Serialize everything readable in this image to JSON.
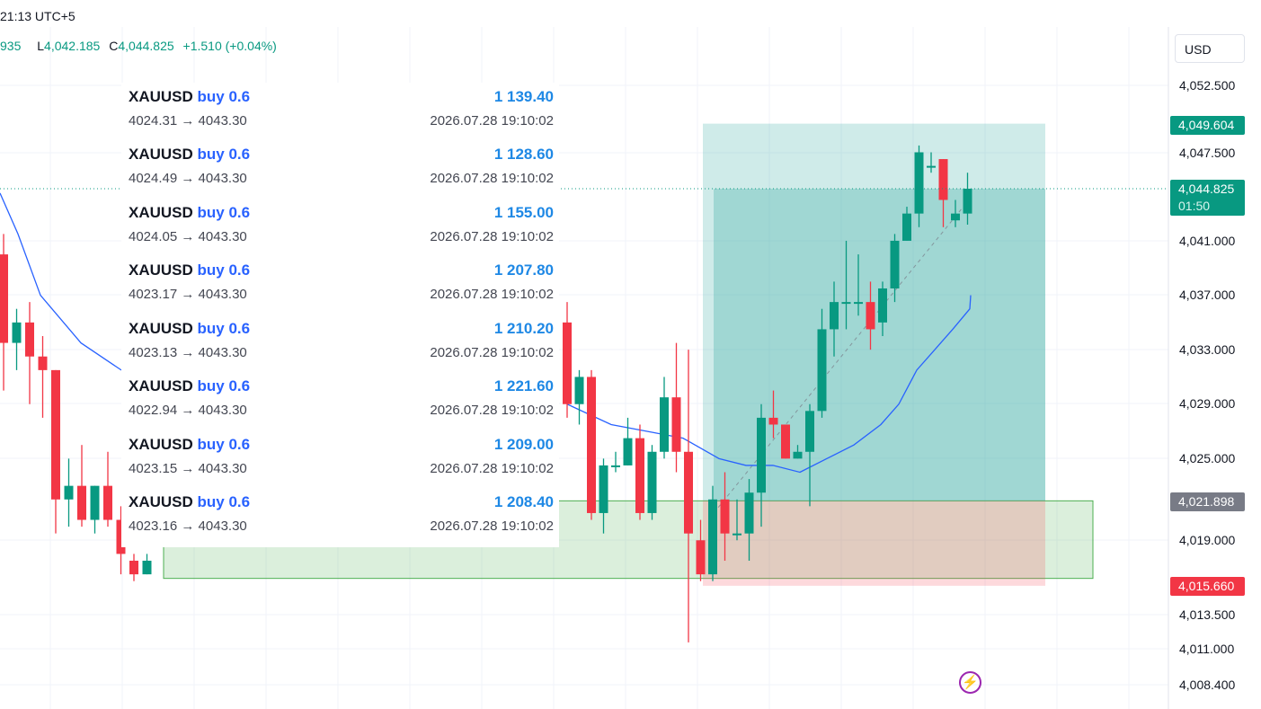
{
  "header": {
    "time": "21:13 UTC+5",
    "ohlc_tail": "935",
    "low_key": "L",
    "low": "4,042.185",
    "close_key": "C",
    "close": "4,044.825",
    "change": "+1.510 (+0.04%)"
  },
  "currency_button": "USD",
  "price_axis": {
    "labels": [
      "4,052.500",
      "4,047.500",
      "4,041.000",
      "4,037.000",
      "4,033.000",
      "4,029.000",
      "4,025.000",
      "4,019.000",
      "4,013.500",
      "4,011.000",
      "4,008.400"
    ]
  },
  "tags": {
    "take_profit": "4,049.604",
    "current_price": "4,044.825",
    "countdown": "01:50",
    "entry": "4,021.898",
    "stop_loss": "4,015.660"
  },
  "colors": {
    "bull": "#089981",
    "bear": "#f23645",
    "ma": "#2962ff",
    "profit_zone": "#26a69a",
    "loss_zone": "#f7525f",
    "demand_zone": "#4caf50",
    "trade_profit": "#1e88e5"
  },
  "trades": [
    {
      "symbol": "XAUUSD",
      "side": "buy 0.6",
      "prices": "4024.31 → 4043.30",
      "profit": "1 139.40",
      "time": "2026.07.28 19:10:02"
    },
    {
      "symbol": "XAUUSD",
      "side": "buy 0.6",
      "prices": "4024.49 → 4043.30",
      "profit": "1 128.60",
      "time": "2026.07.28 19:10:02"
    },
    {
      "symbol": "XAUUSD",
      "side": "buy 0.6",
      "prices": "4024.05 → 4043.30",
      "profit": "1 155.00",
      "time": "2026.07.28 19:10:02"
    },
    {
      "symbol": "XAUUSD",
      "side": "buy 0.6",
      "prices": "4023.17 → 4043.30",
      "profit": "1 207.80",
      "time": "2026.07.28 19:10:02"
    },
    {
      "symbol": "XAUUSD",
      "side": "buy 0.6",
      "prices": "4023.13 → 4043.30",
      "profit": "1 210.20",
      "time": "2026.07.28 19:10:02"
    },
    {
      "symbol": "XAUUSD",
      "side": "buy 0.6",
      "prices": "4022.94 → 4043.30",
      "profit": "1 221.60",
      "time": "2026.07.28 19:10:02"
    },
    {
      "symbol": "XAUUSD",
      "side": "buy 0.6",
      "prices": "4023.15 → 4043.30",
      "profit": "1 209.00",
      "time": "2026.07.28 19:10:02"
    },
    {
      "symbol": "XAUUSD",
      "side": "buy 0.6",
      "prices": "4023.16 → 4043.30",
      "profit": "1 208.40",
      "time": "2026.07.28 19:10:02"
    }
  ],
  "chart_data": {
    "type": "candlestick",
    "instrument": "XAUUSD",
    "moving_average": true,
    "candles": [
      {
        "o": 4040.0,
        "h": 4041.5,
        "c": 4033.5,
        "l": 4030.0
      },
      {
        "o": 4033.5,
        "h": 4036.0,
        "c": 4035.0,
        "l": 4031.5
      },
      {
        "o": 4035.0,
        "h": 4036.5,
        "c": 4032.5,
        "l": 4029.0
      },
      {
        "o": 4032.5,
        "h": 4034.0,
        "c": 4031.5,
        "l": 4028.0
      },
      {
        "o": 4031.5,
        "h": 4031.5,
        "c": 4022.0,
        "l": 4019.5
      },
      {
        "o": 4022.0,
        "h": 4025.0,
        "c": 4023.0,
        "l": 4020.0
      },
      {
        "o": 4023.0,
        "h": 4026.0,
        "c": 4020.5,
        "l": 4020.0
      },
      {
        "o": 4020.5,
        "h": 4023.0,
        "c": 4023.0,
        "l": 4019.5
      },
      {
        "o": 4023.0,
        "h": 4025.5,
        "c": 4020.5,
        "l": 4020.0
      },
      {
        "o": 4020.5,
        "h": 4021.5,
        "c": 4018.0,
        "l": 4016.5
      },
      {
        "o": 4017.5,
        "h": 4018.0,
        "c": 4016.5,
        "l": 4016.0
      },
      {
        "o": 4016.5,
        "h": 4018.0,
        "c": 4017.5,
        "l": 4016.5
      },
      {
        "o": 4035.0,
        "h": 4036.5,
        "c": 4029.0,
        "l": 4028.0
      },
      {
        "o": 4029.0,
        "h": 4031.5,
        "c": 4031.0,
        "l": 4027.5
      },
      {
        "o": 4031.0,
        "h": 4031.5,
        "c": 4021.0,
        "l": 4020.5
      },
      {
        "o": 4021.0,
        "h": 4025.0,
        "c": 4024.5,
        "l": 4019.5
      },
      {
        "o": 4024.5,
        "h": 4025.5,
        "c": 4024.5,
        "l": 4024.0
      },
      {
        "o": 4024.5,
        "h": 4028.0,
        "c": 4026.5,
        "l": 4024.5
      },
      {
        "o": 4026.5,
        "h": 4027.5,
        "c": 4021.0,
        "l": 4020.5
      },
      {
        "o": 4021.0,
        "h": 4026.0,
        "c": 4025.5,
        "l": 4020.5
      },
      {
        "o": 4025.5,
        "h": 4031.0,
        "c": 4029.5,
        "l": 4025.0
      },
      {
        "o": 4029.5,
        "h": 4033.5,
        "c": 4025.5,
        "l": 4024.0
      },
      {
        "o": 4025.5,
        "h": 4033.0,
        "c": 4019.5,
        "l": 4011.5
      },
      {
        "o": 4019.0,
        "h": 4020.5,
        "c": 4016.5,
        "l": 4016.0
      },
      {
        "o": 4016.5,
        "h": 4023.0,
        "c": 4022.0,
        "l": 4016.0
      },
      {
        "o": 4022.0,
        "h": 4024.0,
        "c": 4019.5,
        "l": 4017.5
      },
      {
        "o": 4019.5,
        "h": 4022.0,
        "c": 4019.5,
        "l": 4019.0
      },
      {
        "o": 4019.5,
        "h": 4023.5,
        "c": 4022.5,
        "l": 4017.5
      },
      {
        "o": 4022.5,
        "h": 4029.0,
        "c": 4028.0,
        "l": 4020.0
      },
      {
        "o": 4028.0,
        "h": 4030.0,
        "c": 4027.5,
        "l": 4026.5
      },
      {
        "o": 4027.5,
        "h": 4027.5,
        "c": 4025.0,
        "l": 4025.0
      },
      {
        "o": 4025.0,
        "h": 4026.0,
        "c": 4025.5,
        "l": 4025.0
      },
      {
        "o": 4025.5,
        "h": 4029.0,
        "c": 4028.5,
        "l": 4021.5
      },
      {
        "o": 4028.5,
        "h": 4036.0,
        "c": 4034.5,
        "l": 4028.0
      },
      {
        "o": 4034.5,
        "h": 4038.0,
        "c": 4036.5,
        "l": 4032.5
      },
      {
        "o": 4036.5,
        "h": 4041.0,
        "c": 4036.5,
        "l": 4034.5
      },
      {
        "o": 4036.5,
        "h": 4040.0,
        "c": 4036.5,
        "l": 4035.5
      },
      {
        "o": 4036.5,
        "h": 4038.0,
        "c": 4034.5,
        "l": 4033.0
      },
      {
        "o": 4035.0,
        "h": 4038.0,
        "c": 4037.5,
        "l": 4034.0
      },
      {
        "o": 4037.5,
        "h": 4041.5,
        "c": 4041.0,
        "l": 4036.5
      },
      {
        "o": 4041.0,
        "h": 4043.5,
        "c": 4043.0,
        "l": 4041.0
      },
      {
        "o": 4043.0,
        "h": 4048.0,
        "c": 4047.5,
        "l": 4042.0
      },
      {
        "o": 4046.5,
        "h": 4047.5,
        "c": 4046.5,
        "l": 4046.0
      },
      {
        "o": 4047.0,
        "h": 4047.0,
        "c": 4044.0,
        "l": 4042.0
      },
      {
        "o": 4042.5,
        "h": 4044.0,
        "c": 4043.0,
        "l": 4042.0
      },
      {
        "o": 4043.0,
        "h": 4046.0,
        "c": 4044.825,
        "l": 4042.185
      }
    ],
    "ma_values": [
      4044.5,
      4041.5,
      4037.0,
      4033.5,
      4031.5,
      4029.0,
      4027.5,
      4027.0,
      4026.5,
      4025.0,
      4024.5,
      4024.5,
      4024.0,
      4025.0,
      4026.0,
      4027.5,
      4029.0,
      4031.5,
      4033.0,
      4034.5,
      4036.0,
      4037.0
    ],
    "long_position": {
      "take_profit": 4049.604,
      "entry": 4021.898,
      "stop_loss": 4015.66
    },
    "demand_zone": {
      "top": 4021.898,
      "bottom": 4016.2
    },
    "current_price": 4044.825
  }
}
